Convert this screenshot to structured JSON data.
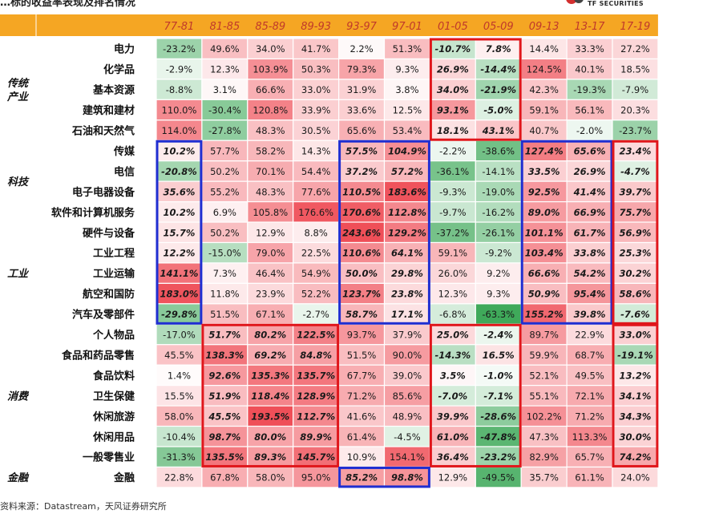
{
  "header": {
    "title_fragment": "…标的收益率表现及排名情况",
    "logo_text": "TF SECURITIES"
  },
  "source": "资料来源：Datastream，天风证券研究所",
  "colors": {
    "header_bg": "#f5a623",
    "header_text": "#c0392b",
    "label_text": "#111111",
    "positive": "#e8505b",
    "negative": "#3aa655",
    "box_red": "#e0161b",
    "box_blue": "#1f2ed1"
  },
  "chart_data": {
    "type": "heatmap",
    "title": "",
    "columns": [
      "77-81",
      "81-85",
      "85-89",
      "89-93",
      "93-97",
      "97-01",
      "01-05",
      "05-09",
      "09-13",
      "13-17",
      "17-19"
    ],
    "groups": [
      {
        "name": "传统\n产业",
        "start": 0,
        "end": 4
      },
      {
        "name": "科技",
        "start": 5,
        "end": 8
      },
      {
        "name": "工业",
        "start": 9,
        "end": 13
      },
      {
        "name": "消费",
        "start": 14,
        "end": 20
      },
      {
        "name": "金融",
        "start": 21,
        "end": 21
      }
    ],
    "rows": [
      "电力",
      "化学品",
      "基本资源",
      "建筑和建材",
      "石油和天然气",
      "传媒",
      "电信",
      "电子电器设备",
      "软件和计算机服务",
      "硬件与设备",
      "工业工程",
      "工业运输",
      "航空和国防",
      "汽车及零部件",
      "个人物品",
      "食品和药品零售",
      "食品饮料",
      "卫生保健",
      "休闲旅游",
      "休闲用品",
      "一般零售业",
      "金融"
    ],
    "values": [
      [
        -23.2,
        49.6,
        34.0,
        41.7,
        2.2,
        51.3,
        -10.7,
        7.8,
        14.4,
        33.3,
        27.2
      ],
      [
        -2.9,
        12.3,
        103.9,
        50.3,
        79.3,
        9.3,
        26.9,
        -14.4,
        124.5,
        40.1,
        18.5
      ],
      [
        -8.8,
        3.1,
        66.6,
        33.0,
        31.9,
        3.8,
        34.0,
        -21.9,
        42.3,
        -19.3,
        -7.9
      ],
      [
        110.0,
        -30.4,
        120.8,
        33.9,
        33.6,
        12.5,
        93.1,
        -5.0,
        59.1,
        56.1,
        20.3
      ],
      [
        114.0,
        -27.8,
        48.3,
        30.5,
        65.6,
        53.4,
        18.1,
        43.1,
        40.7,
        -2.0,
        -23.7
      ],
      [
        10.2,
        57.7,
        58.2,
        14.3,
        57.5,
        104.9,
        -2.2,
        -38.6,
        127.4,
        65.6,
        23.4
      ],
      [
        -20.8,
        50.2,
        70.1,
        54.4,
        37.2,
        57.2,
        -36.1,
        -14.1,
        33.5,
        26.9,
        -4.7
      ],
      [
        35.6,
        55.2,
        48.3,
        77.6,
        110.5,
        183.6,
        -9.3,
        -19.0,
        92.5,
        41.4,
        39.7
      ],
      [
        10.2,
        6.9,
        105.8,
        176.6,
        170.6,
        112.8,
        -9.7,
        -16.2,
        89.0,
        66.9,
        75.7
      ],
      [
        15.7,
        50.2,
        12.9,
        8.8,
        243.6,
        129.2,
        -37.2,
        -26.1,
        101.1,
        61.7,
        56.9
      ],
      [
        12.2,
        -15.0,
        79.0,
        22.5,
        110.6,
        64.1,
        59.1,
        -9.2,
        103.4,
        33.8,
        25.3
      ],
      [
        141.1,
        7.3,
        46.4,
        54.9,
        50.0,
        29.8,
        26.0,
        9.2,
        66.6,
        54.2,
        30.2
      ],
      [
        183.0,
        11.8,
        23.9,
        52.2,
        123.7,
        23.8,
        12.3,
        9.3,
        50.9,
        95.4,
        58.6
      ],
      [
        -29.8,
        51.5,
        67.1,
        -2.7,
        58.7,
        17.1,
        -6.8,
        -63.3,
        155.2,
        39.8,
        -7.6
      ],
      [
        -17.0,
        51.7,
        80.2,
        122.5,
        93.7,
        37.9,
        25.0,
        -2.4,
        89.7,
        22.9,
        33.0
      ],
      [
        45.5,
        138.3,
        69.2,
        84.8,
        51.5,
        90.0,
        -14.3,
        16.5,
        59.9,
        68.7,
        -19.1
      ],
      [
        1.4,
        92.6,
        135.3,
        135.7,
        67.7,
        39.0,
        3.5,
        -1.0,
        52.1,
        49.5,
        13.2
      ],
      [
        15.5,
        51.9,
        118.4,
        128.9,
        71.2,
        85.6,
        -7.0,
        -7.1,
        55.1,
        72.1,
        34.1
      ],
      [
        58.0,
        45.5,
        193.5,
        112.7,
        41.6,
        48.9,
        39.9,
        -28.6,
        102.2,
        71.2,
        34.3
      ],
      [
        -10.4,
        98.7,
        80.0,
        89.9,
        61.4,
        -4.5,
        61.0,
        -47.8,
        47.3,
        113.3,
        30.0
      ],
      [
        -31.3,
        135.5,
        89.3,
        145.7,
        10.9,
        154.1,
        36.4,
        -23.2,
        82.9,
        65.7,
        74.2
      ],
      [
        22.8,
        67.8,
        58.0,
        95.0,
        85.2,
        98.8,
        12.9,
        -49.5,
        35.7,
        61.1,
        24.0
      ]
    ],
    "highlight_boxes": [
      {
        "color": "red",
        "row_start": 0,
        "row_end": 4,
        "col_start": 6,
        "col_end": 7
      },
      {
        "color": "blue",
        "row_start": 5,
        "row_end": 13,
        "col_start": 0,
        "col_end": 0
      },
      {
        "color": "blue",
        "row_start": 5,
        "row_end": 13,
        "col_start": 4,
        "col_end": 5
      },
      {
        "color": "blue",
        "row_start": 5,
        "row_end": 13,
        "col_start": 8,
        "col_end": 9
      },
      {
        "color": "red",
        "row_start": 5,
        "row_end": 13,
        "col_start": 10,
        "col_end": 10
      },
      {
        "color": "red",
        "row_start": 14,
        "row_end": 20,
        "col_start": 1,
        "col_end": 3
      },
      {
        "color": "red",
        "row_start": 14,
        "row_end": 20,
        "col_start": 6,
        "col_end": 7
      },
      {
        "color": "red",
        "row_start": 14,
        "row_end": 20,
        "col_start": 10,
        "col_end": 10
      },
      {
        "color": "blue",
        "row_start": 21,
        "row_end": 21,
        "col_start": 4,
        "col_end": 5
      }
    ],
    "ylim": [
      -63.3,
      243.6
    ]
  }
}
